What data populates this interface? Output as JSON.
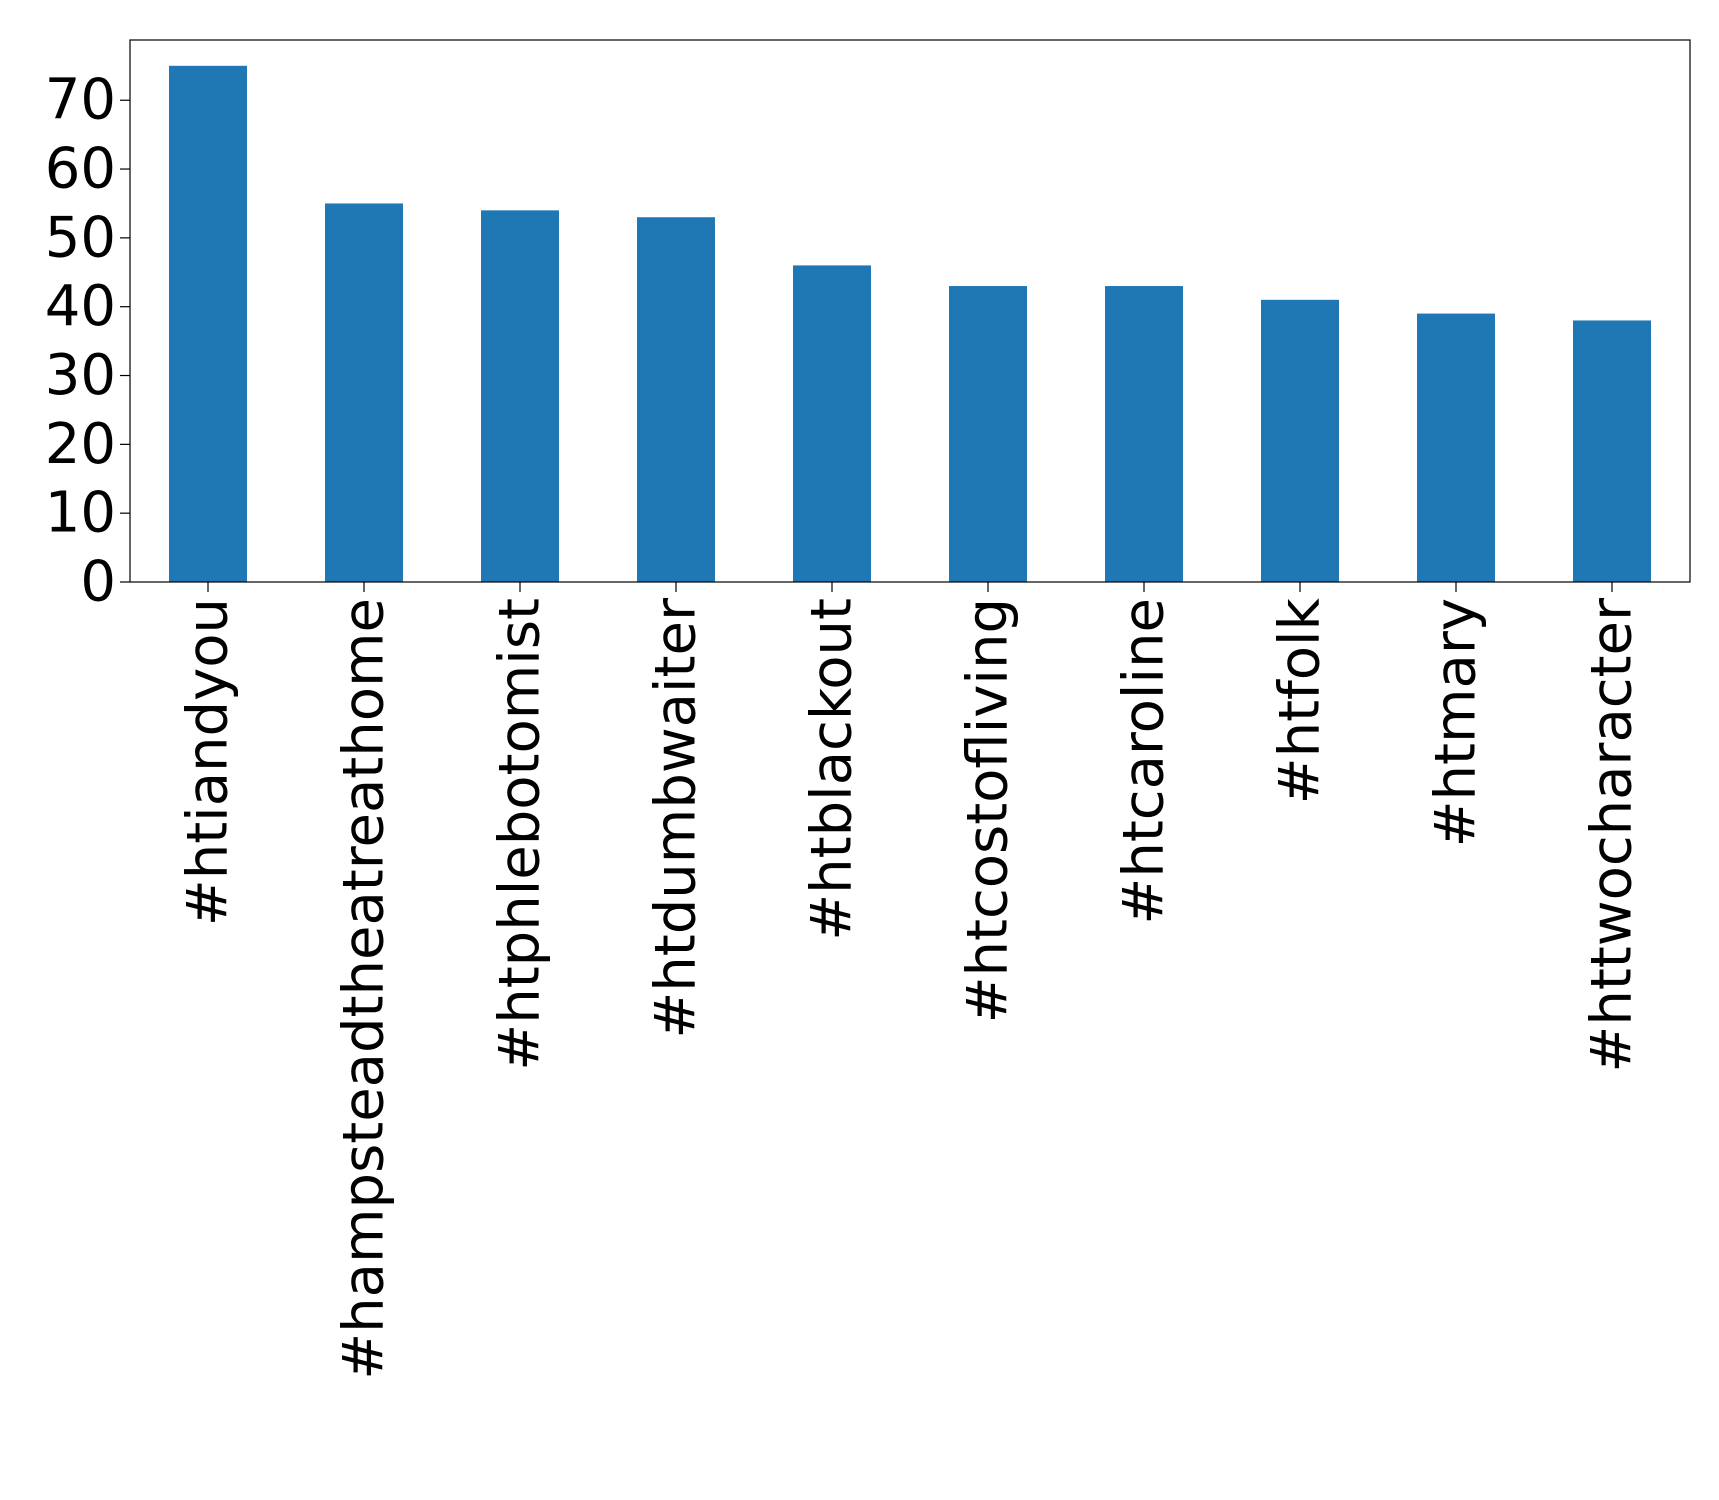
{
  "chart_data": {
    "type": "bar",
    "title": "",
    "xlabel": "",
    "ylabel": "",
    "categories": [
      "#htiandyou",
      "#hampsteadtheatreathome",
      "#htphlebotomist",
      "#htdumbwaiter",
      "#htblackout",
      "#htcostofliving",
      "#htcaroline",
      "#htfolk",
      "#htmary",
      "#httwocharacter"
    ],
    "values": [
      75,
      55,
      54,
      53,
      46,
      43,
      43,
      41,
      39,
      38
    ],
    "ylim": [
      0,
      78.75
    ],
    "yticks": [
      "0",
      "10",
      "20",
      "30",
      "40",
      "50",
      "60",
      "70"
    ],
    "bar_color": "#1f77b4",
    "grid": false,
    "legend": "none"
  }
}
